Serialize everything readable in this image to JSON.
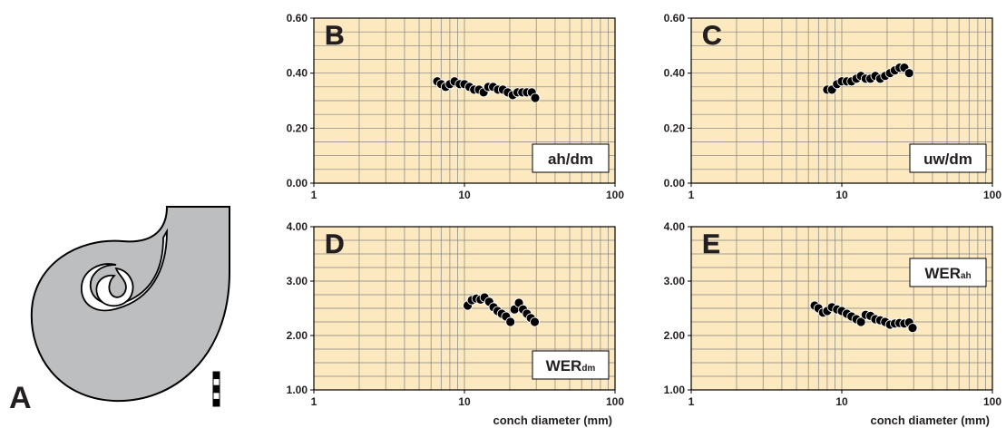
{
  "panel_a": {
    "label": "A"
  },
  "chart_data": [
    {
      "type": "scatter",
      "panel": "B",
      "label": "ah/dm",
      "label_corner": "lower right",
      "log_x": true,
      "color": "#000000",
      "background": "#fde9c0",
      "xlim": [
        1,
        100
      ],
      "xticks": [
        1,
        10,
        100
      ],
      "xgrid": [
        1,
        2,
        3,
        4,
        5,
        6,
        7,
        8,
        9,
        10,
        20,
        30,
        40,
        50,
        60,
        70,
        80,
        90,
        100
      ],
      "ylim": [
        0,
        0.6
      ],
      "yticks": [
        {
          "value": 0,
          "label": "0.00"
        },
        {
          "value": 0.2,
          "label": "0.20"
        },
        {
          "value": 0.4,
          "label": "0.40"
        },
        {
          "value": 0.6,
          "label": "0.60"
        }
      ],
      "ygrid": [
        0,
        0.05,
        0.1,
        0.15,
        0.2,
        0.25,
        0.3,
        0.35,
        0.4,
        0.45,
        0.5,
        0.55,
        0.6
      ],
      "x": [
        6.6,
        7.0,
        7.5,
        8.0,
        8.6,
        9.3,
        10.0,
        10.8,
        11.6,
        12.5,
        13.4,
        14.4,
        15.5,
        16.7,
        18.0,
        19.4,
        20.9,
        22.5,
        24.2,
        26.0,
        28.0,
        29.5
      ],
      "values": [
        0.37,
        0.36,
        0.35,
        0.36,
        0.37,
        0.36,
        0.36,
        0.35,
        0.34,
        0.34,
        0.33,
        0.35,
        0.35,
        0.34,
        0.34,
        0.33,
        0.32,
        0.33,
        0.33,
        0.33,
        0.33,
        0.31
      ]
    },
    {
      "type": "scatter",
      "panel": "C",
      "label": "uw/dm",
      "label_corner": "lower right",
      "log_x": true,
      "color": "#000000",
      "background": "#fde9c0",
      "xlim": [
        1,
        100
      ],
      "xticks": [
        1,
        10,
        100
      ],
      "xgrid": [
        1,
        2,
        3,
        4,
        5,
        6,
        7,
        8,
        9,
        10,
        20,
        30,
        40,
        50,
        60,
        70,
        80,
        90,
        100
      ],
      "ylim": [
        0,
        0.6
      ],
      "yticks": [
        {
          "value": 0,
          "label": "0.00"
        },
        {
          "value": 0.2,
          "label": "0.20"
        },
        {
          "value": 0.4,
          "label": "0.40"
        },
        {
          "value": 0.6,
          "label": "0.60"
        }
      ],
      "ygrid": [
        0,
        0.05,
        0.1,
        0.15,
        0.2,
        0.25,
        0.3,
        0.35,
        0.4,
        0.45,
        0.5,
        0.55,
        0.6
      ],
      "x": [
        8.0,
        8.6,
        9.3,
        10.0,
        10.8,
        11.6,
        12.5,
        13.4,
        14.4,
        15.5,
        16.7,
        18.0,
        19.4,
        20.9,
        22.5,
        24.2,
        26.0,
        28.0
      ],
      "values": [
        0.34,
        0.34,
        0.36,
        0.37,
        0.37,
        0.37,
        0.38,
        0.39,
        0.38,
        0.38,
        0.39,
        0.38,
        0.39,
        0.4,
        0.41,
        0.42,
        0.42,
        0.4
      ]
    },
    {
      "type": "scatter",
      "panel": "D",
      "label": {
        "main": "WER",
        "sub": "dm"
      },
      "label_corner": "lower right",
      "xlabel": "conch diameter (mm)",
      "log_x": true,
      "color": "#000000",
      "background": "#fde9c0",
      "xlim": [
        1,
        100
      ],
      "xticks": [
        1,
        10,
        100
      ],
      "xgrid": [
        1,
        2,
        3,
        4,
        5,
        6,
        7,
        8,
        9,
        10,
        20,
        30,
        40,
        50,
        60,
        70,
        80,
        90,
        100
      ],
      "ylim": [
        1,
        4
      ],
      "yticks": [
        {
          "value": 1,
          "label": "1.00"
        },
        {
          "value": 2,
          "label": "2.00"
        },
        {
          "value": 3,
          "label": "3.00"
        },
        {
          "value": 4,
          "label": "4.00"
        }
      ],
      "ygrid": [
        1,
        1.25,
        1.5,
        1.75,
        2,
        2.25,
        2.5,
        2.75,
        3,
        3.25,
        3.5,
        3.75,
        4
      ],
      "x": [
        10.5,
        11.2,
        12.0,
        12.8,
        13.6,
        14.6,
        15.6,
        16.6,
        17.7,
        18.9,
        20.2,
        21.5,
        23.0,
        24.5,
        26.0,
        27.6,
        29.3
      ],
      "values": [
        2.55,
        2.65,
        2.68,
        2.66,
        2.7,
        2.62,
        2.52,
        2.45,
        2.4,
        2.35,
        2.25,
        2.48,
        2.6,
        2.48,
        2.4,
        2.32,
        2.25
      ]
    },
    {
      "type": "scatter",
      "panel": "E",
      "label": {
        "main": "WER",
        "sub": "ah"
      },
      "label_corner": "upper right",
      "xlabel": "conch diameter (mm)",
      "log_x": true,
      "color": "#000000",
      "background": "#fde9c0",
      "xlim": [
        1,
        100
      ],
      "xticks": [
        1,
        10,
        100
      ],
      "xgrid": [
        1,
        2,
        3,
        4,
        5,
        6,
        7,
        8,
        9,
        10,
        20,
        30,
        40,
        50,
        60,
        70,
        80,
        90,
        100
      ],
      "ylim": [
        1,
        4
      ],
      "yticks": [
        {
          "value": 1,
          "label": "1.00"
        },
        {
          "value": 2,
          "label": "2.00"
        },
        {
          "value": 3,
          "label": "3.00"
        },
        {
          "value": 4,
          "label": "4.00"
        }
      ],
      "ygrid": [
        1,
        1.25,
        1.5,
        1.75,
        2,
        2.25,
        2.5,
        2.75,
        3,
        3.25,
        3.5,
        3.75,
        4
      ],
      "x": [
        6.6,
        7.0,
        7.5,
        8.0,
        8.6,
        9.3,
        10.0,
        10.8,
        11.6,
        12.5,
        13.4,
        14.4,
        15.5,
        16.7,
        18.0,
        19.4,
        20.9,
        22.5,
        24.2,
        26.0,
        28.0,
        29.5
      ],
      "values": [
        2.55,
        2.5,
        2.42,
        2.45,
        2.52,
        2.48,
        2.45,
        2.4,
        2.35,
        2.3,
        2.25,
        2.38,
        2.36,
        2.3,
        2.28,
        2.25,
        2.2,
        2.22,
        2.23,
        2.22,
        2.24,
        2.14
      ]
    }
  ]
}
